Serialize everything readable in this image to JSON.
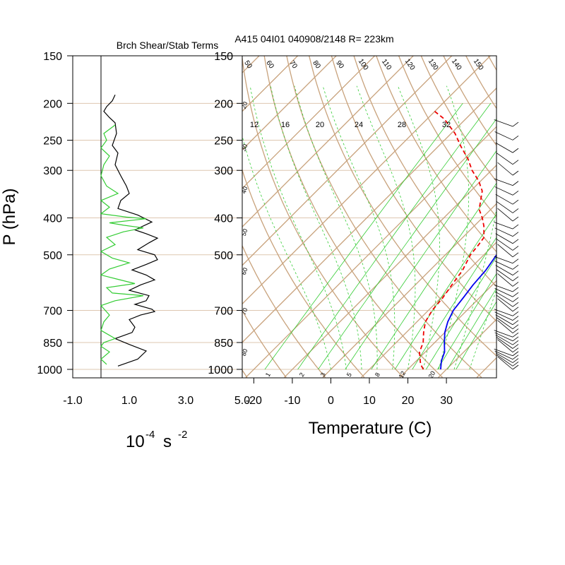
{
  "colors": {
    "tan": "#c8a27c",
    "mixing": "#33cc33",
    "temp": "#0000ee",
    "dew": "#ee0000"
  },
  "chart_data": [
    {
      "type": "line",
      "title": "Brch Shear/Stab Terms",
      "ylabel": "P (hPa)",
      "xunit_base": "10",
      "xunit_exp": "-4",
      "xunit_s": "s",
      "xunit_s_exp": "-2",
      "x_ticks": [
        "-1.0",
        "1.0",
        "3.0",
        "5.0"
      ],
      "x_tick_values": [
        -1.0,
        1.0,
        3.0,
        5.0
      ],
      "xlim": [
        -1.0,
        5.0
      ],
      "y_ticks": [
        "150",
        "200",
        "250",
        "300",
        "400",
        "500",
        "700",
        "850",
        "1000"
      ],
      "y_tick_values": [
        150,
        200,
        250,
        300,
        400,
        500,
        700,
        850,
        1000
      ],
      "ylim": [
        150,
        1000
      ],
      "ylog": true,
      "series": [
        {
          "color": "#000000",
          "x": [
            0.5,
            0.4,
            0.2,
            0.1,
            0.3,
            0.5,
            0.55,
            0.4,
            0.6,
            0.5,
            0.7,
            0.9,
            1.0,
            0.7,
            0.6,
            1.3,
            1.8,
            1.2,
            1.6,
            2.0,
            1.7,
            1.3,
            1.9,
            2.0,
            1.6,
            1.1,
            1.6,
            1.9,
            1.4,
            1.0,
            1.7,
            1.6,
            1.2,
            1.8,
            1.9,
            1.4,
            1.0,
            1.2,
            1.1,
            0.5,
            1.0,
            1.6,
            1.3,
            0.6
          ],
          "p": [
            190,
            197,
            204,
            210,
            218,
            225,
            240,
            258,
            270,
            290,
            310,
            330,
            345,
            360,
            378,
            393,
            410,
            430,
            440,
            452,
            465,
            485,
            500,
            515,
            530,
            548,
            565,
            582,
            600,
            620,
            640,
            660,
            675,
            695,
            705,
            720,
            740,
            775,
            800,
            830,
            860,
            895,
            940,
            980
          ]
        },
        {
          "color": "#33cc33",
          "x": [
            0.5,
            0.1,
            0.2,
            0.0,
            0.3,
            0.1,
            0.0,
            0.2,
            0.6,
            0.0,
            0.3,
            0.0,
            0.9,
            1.6,
            0.3,
            0.8,
            1.5,
            0.8,
            0.2,
            0.5,
            0.0,
            0.4,
            1.0,
            0.3,
            0.0,
            0.6,
            1.2,
            0.2,
            0.4,
            1.5,
            0.5,
            0.0,
            0.3,
            0.1,
            0.0,
            0.5,
            0.1,
            0.0,
            0.3,
            0.0,
            0.2
          ],
          "p": [
            228,
            240,
            250,
            262,
            275,
            290,
            310,
            330,
            345,
            360,
            375,
            390,
            398,
            402,
            412,
            418,
            425,
            435,
            450,
            470,
            490,
            510,
            525,
            545,
            565,
            580,
            595,
            610,
            630,
            640,
            660,
            680,
            720,
            750,
            790,
            830,
            850,
            870,
            900,
            940,
            970
          ]
        }
      ]
    },
    {
      "type": "line",
      "title": "A415 04I01 040908/2148 R= 223km",
      "xlabel": "Temperature (C)",
      "x_ticks": [
        "-20",
        "-10",
        "0",
        "10",
        "20",
        "30"
      ],
      "x_tick_values": [
        -20,
        -10,
        0,
        10,
        20,
        30
      ],
      "xlim": [
        -23,
        43
      ],
      "y_ticks": [
        "150",
        "200",
        "250",
        "300",
        "400",
        "500",
        "700",
        "850",
        "1000"
      ],
      "y_tick_values": [
        150,
        200,
        250,
        300,
        400,
        500,
        700,
        850,
        1000
      ],
      "ylim": [
        150,
        1000
      ],
      "ylog": true,
      "mixing_ratio_labels_top": [
        "12",
        "16",
        "20",
        "24",
        "28",
        "32"
      ],
      "mixing_ratio_labels_bottom": [
        "1",
        "2",
        "3",
        "5",
        "8",
        "12",
        "20"
      ],
      "theta_labels": [
        "50",
        "60",
        "70",
        "80",
        "90",
        "100",
        "110",
        "120",
        "130",
        "140",
        "150"
      ],
      "isotherm_labels_left": [
        "20",
        "30",
        "40",
        "50",
        "60",
        "70",
        "80"
      ],
      "series": [
        {
          "name": "temperature",
          "color": "#0000ee",
          "p": [
            1000,
            950,
            900,
            850,
            800,
            750,
            700,
            650,
            600,
            550,
            500,
            450,
            400,
            350,
            300,
            250,
            200,
            180
          ],
          "t": [
            28.5,
            26.5,
            25.0,
            22.5,
            20.0,
            18.0,
            16.5,
            15.8,
            15.0,
            14.5,
            13.3,
            12.0,
            8.6,
            3.9,
            -2.4,
            -11.0,
            -22.4,
            -28.5
          ]
        },
        {
          "name": "dewpoint",
          "color": "#ee0000",
          "p": [
            1000,
            970,
            950,
            900,
            850,
            800,
            750,
            700,
            650,
            600,
            550,
            500,
            470,
            450,
            420,
            400,
            380,
            340,
            320,
            300,
            280,
            260,
            240,
            220,
            210
          ],
          "t": [
            24.0,
            22.0,
            21.0,
            18.5,
            17.0,
            14.5,
            12.2,
            11.0,
            10.5,
            9.5,
            8.5,
            6.5,
            6.0,
            5.5,
            2.5,
            0.0,
            -3.0,
            -7.0,
            -10.5,
            -15.0,
            -19.0,
            -24.0,
            -29.0,
            -35.5,
            -40.0
          ]
        }
      ],
      "wind_barbs_count": 40
    }
  ]
}
